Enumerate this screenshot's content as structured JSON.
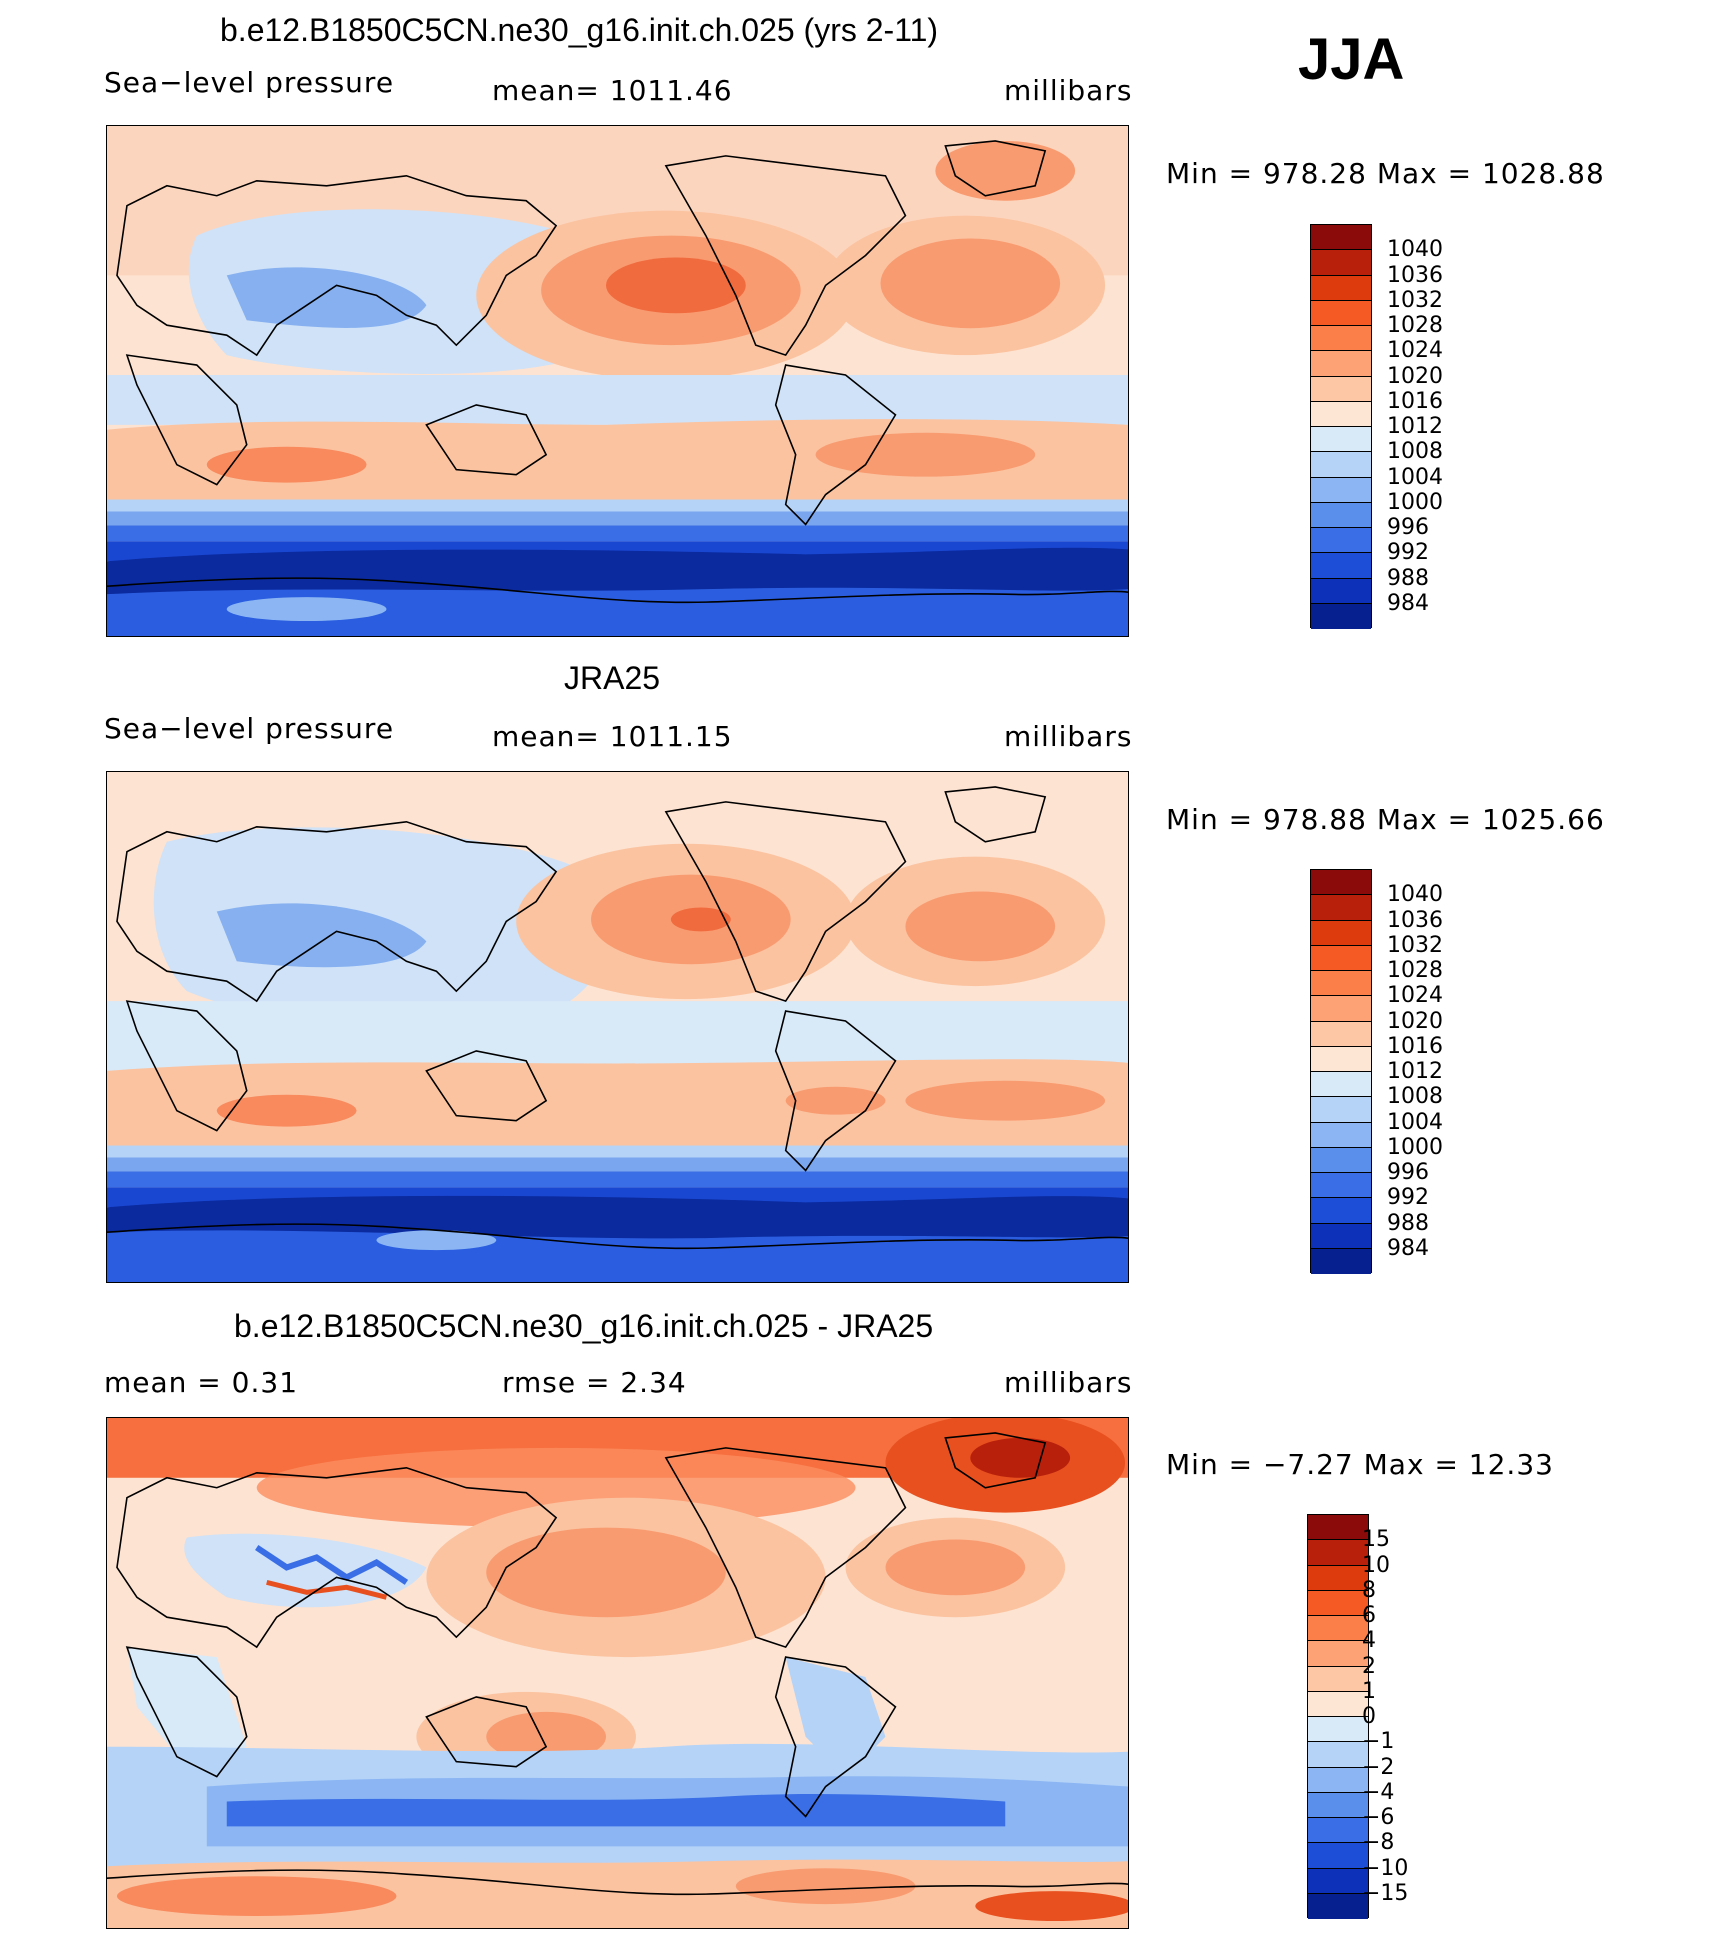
{
  "season": "JJA",
  "panels": [
    {
      "title": "b.e12.B1850C5CN.ne30_g16.init.ch.025 (yrs 2-11)",
      "left_label": "Sea−level pressure",
      "center_label": "mean=  1011.46",
      "units": "millibars",
      "minmax": "Min  =  978.28  Max  =  1028.88",
      "colorbar": {
        "labels": [
          "1040",
          "1036",
          "1032",
          "1028",
          "1024",
          "1020",
          "1016",
          "1012",
          "1008",
          "1004",
          "1000",
          "996",
          "992",
          "988",
          "984"
        ],
        "colors": [
          "#8b0a0a",
          "#b8200c",
          "#dd3a0e",
          "#f65a24",
          "#fb7f48",
          "#fca274",
          "#fdc6a4",
          "#fde6d4",
          "#d8e9f8",
          "#b5d3f7",
          "#8bb6f3",
          "#5a90ec",
          "#3a6ee6",
          "#1c4ed8",
          "#0d31b8",
          "#062090"
        ]
      }
    },
    {
      "title": "JRA25",
      "left_label": "Sea−level pressure",
      "center_label": "mean=  1011.15",
      "units": "millibars",
      "minmax": "Min  =  978.88  Max  =  1025.66",
      "colorbar": {
        "labels": [
          "1040",
          "1036",
          "1032",
          "1028",
          "1024",
          "1020",
          "1016",
          "1012",
          "1008",
          "1004",
          "1000",
          "996",
          "992",
          "988",
          "984"
        ],
        "colors": [
          "#8b0a0a",
          "#b8200c",
          "#dd3a0e",
          "#f65a24",
          "#fb7f48",
          "#fca274",
          "#fdc6a4",
          "#fde6d4",
          "#d8e9f8",
          "#b5d3f7",
          "#8bb6f3",
          "#5a90ec",
          "#3a6ee6",
          "#1c4ed8",
          "#0d31b8",
          "#062090"
        ]
      }
    },
    {
      "title": "b.e12.B1850C5CN.ne30_g16.init.ch.025 - JRA25",
      "left_label": "mean  =     0.31",
      "center_label": "rmse  =     2.34",
      "units": "millibars",
      "minmax": "Min  =    −7.27  Max  =    12.33",
      "colorbar": {
        "labels": [
          "15",
          "10",
          "8",
          "6",
          "4",
          "2",
          "1",
          "0",
          "−1",
          "−2",
          "−4",
          "−6",
          "−8",
          "−10",
          "−15"
        ],
        "colors": [
          "#8b0a0a",
          "#b8200c",
          "#dd3a0e",
          "#f65a24",
          "#fb7f48",
          "#fca274",
          "#fdc6a4",
          "#fde6d4",
          "#d8e9f8",
          "#b5d3f7",
          "#8bb6f3",
          "#5a90ec",
          "#3a6ee6",
          "#1c4ed8",
          "#0d31b8",
          "#062090"
        ]
      }
    }
  ]
}
